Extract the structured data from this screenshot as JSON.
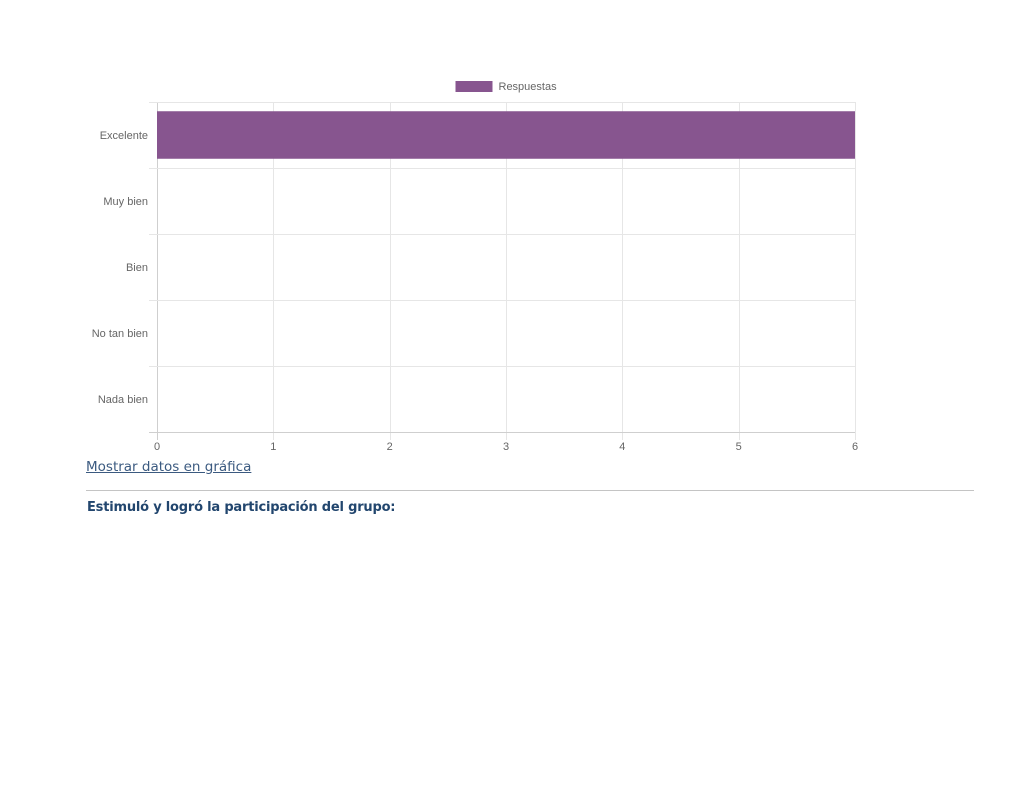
{
  "chart_data": {
    "type": "bar",
    "orientation": "horizontal",
    "categories": [
      "Excelente",
      "Muy bien",
      "Bien",
      "No tan bien",
      "Nada bien"
    ],
    "series": [
      {
        "name": "Respuestas",
        "values": [
          6,
          0,
          0,
          0,
          0
        ]
      }
    ],
    "xlim": [
      0,
      6
    ],
    "x_ticks": [
      0,
      1,
      2,
      3,
      4,
      5,
      6
    ],
    "grid": true,
    "legend": "top",
    "colors": {
      "bar": "#87558f",
      "grid": "#e6e6e6",
      "tick_text": "#666666"
    }
  },
  "links": {
    "show_data": "Mostrar datos en gráfica"
  },
  "question": {
    "text": "Estimuló y logró la participación del grupo:"
  }
}
